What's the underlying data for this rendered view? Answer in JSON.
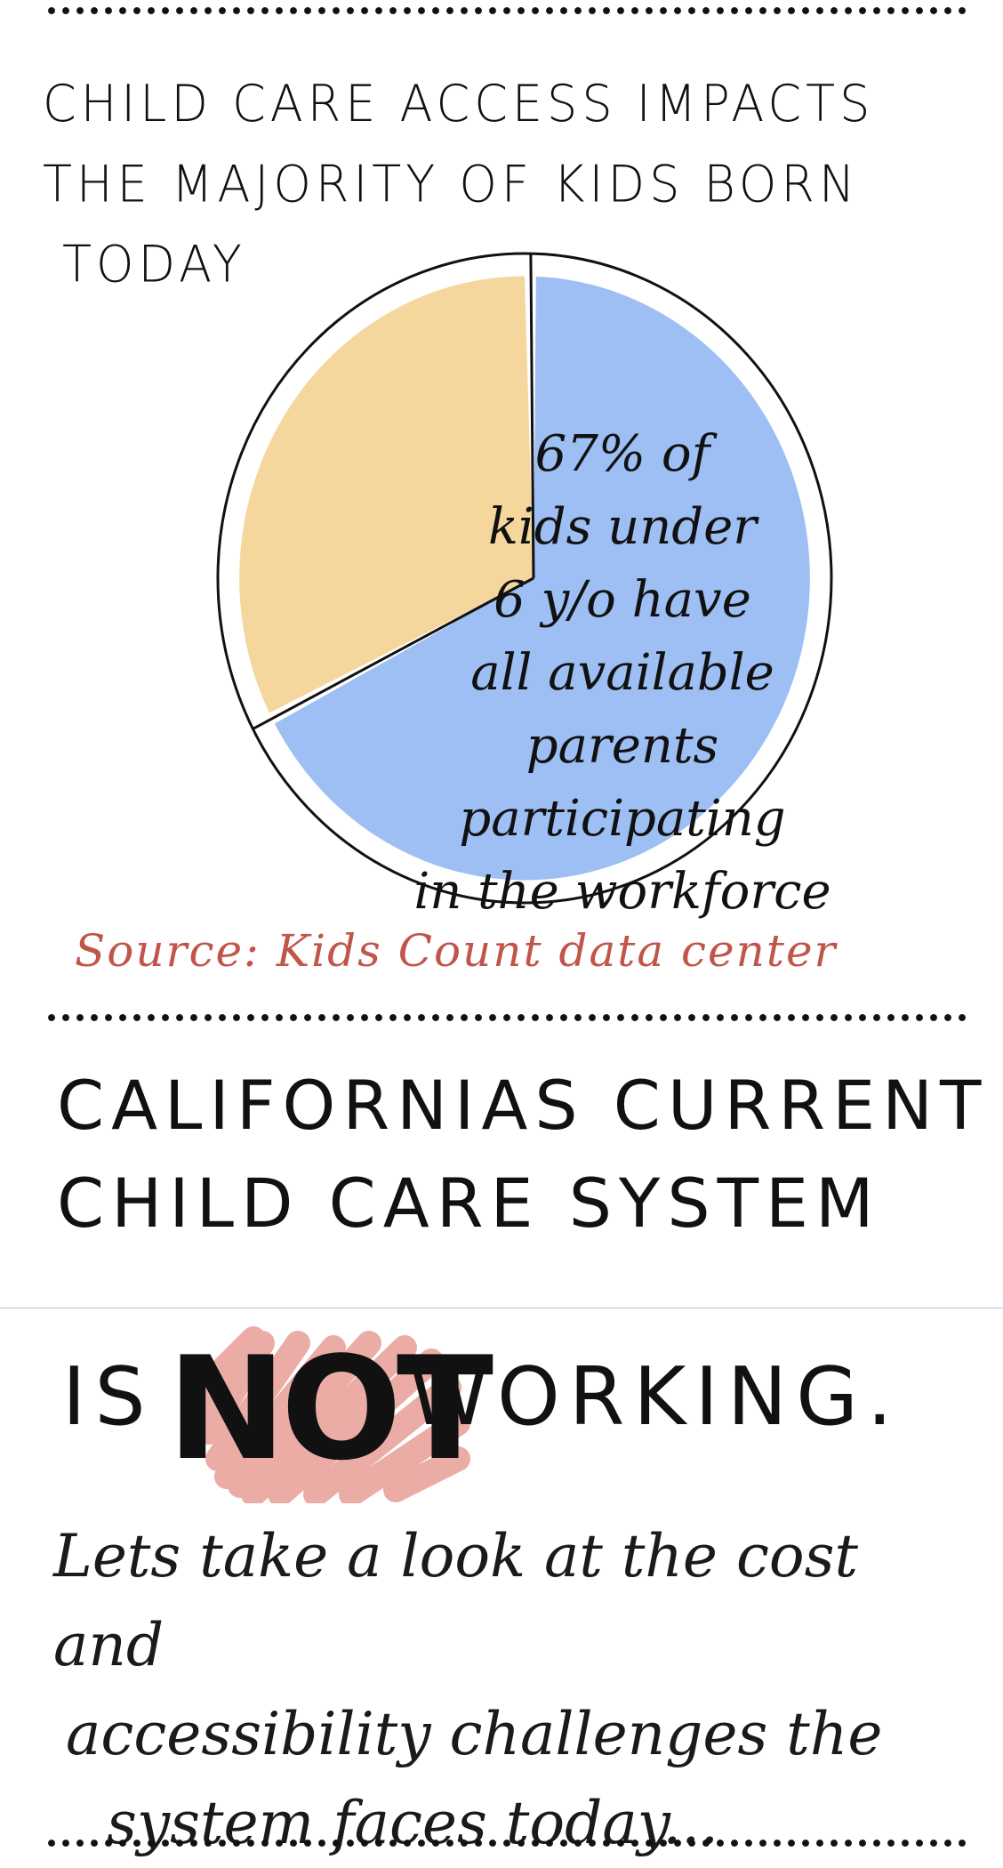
{
  "title": "CHILD CARE ACCESS IMPACTS THE MAJORITY OF KIDS BORN TODAY",
  "title_lines": [
    "CHILD CARE ACCESS IMPACTS",
    "THE MAJORITY OF KIDS BORN",
    "TODAY"
  ],
  "chart_data": {
    "type": "pie",
    "title": "CHILD CARE ACCESS IMPACTS THE MAJORITY OF KIDS BORN TODAY",
    "slices": [
      {
        "label": "67% of kids under 6 y/o have all available parents participating in the workforce",
        "value": 67,
        "color": "#9dbff3"
      },
      {
        "label": "",
        "value": 33,
        "color": "#f5d79e"
      }
    ],
    "annotation": "67% of kids under 6 y/o have all available parents participating in the workforce",
    "legend": "none",
    "grid": false
  },
  "pie_label_lines": [
    "67% of",
    "kids under",
    "6 y/o have",
    "all available",
    "parents participating",
    "in the workforce"
  ],
  "source": "Source: Kids Count data center",
  "heading1_lines": [
    "CALIFORNIAS CURRENT",
    "CHILD CARE SYSTEM"
  ],
  "heading2": {
    "is": "IS",
    "not": "NOT",
    "rest": "WORKING."
  },
  "subtext_lines": [
    "Lets take a look at the cost and",
    "accessibility challenges the",
    "system faces today..."
  ],
  "colors": {
    "blue": "#9dbff3",
    "yellow": "#f5d79e",
    "red_highlight": "#e8a39b",
    "source_red": "#c0564a"
  }
}
